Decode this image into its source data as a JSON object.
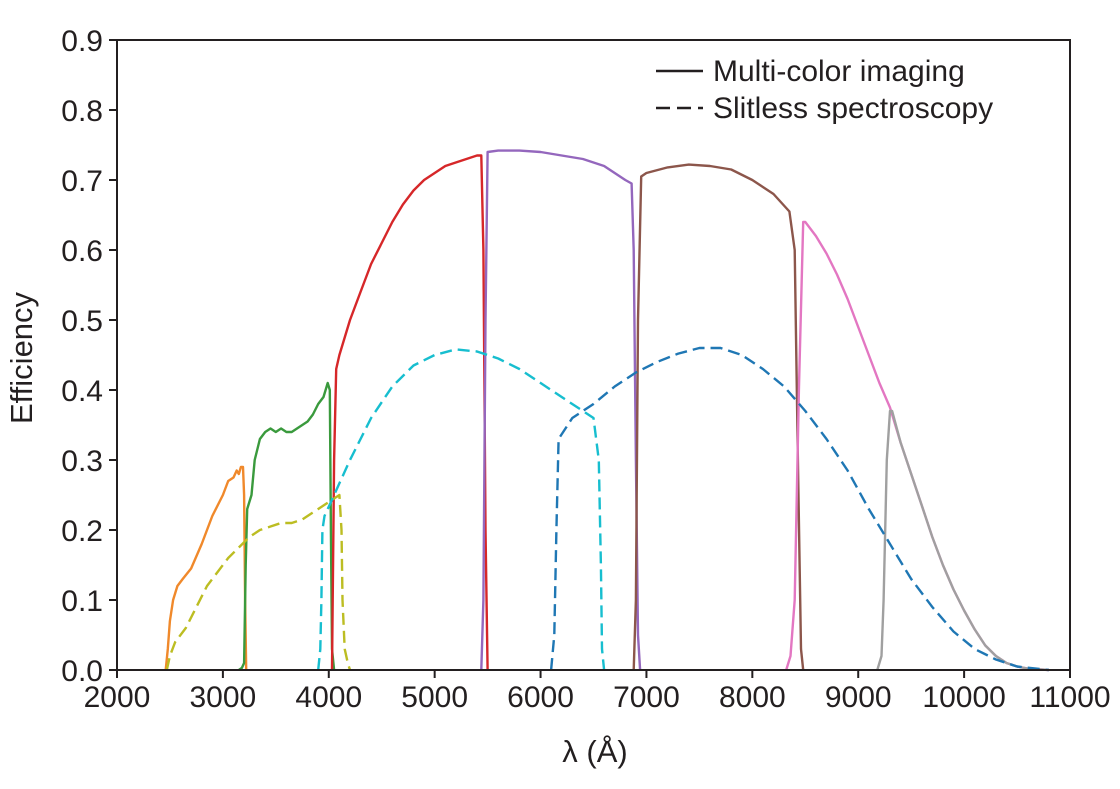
{
  "chart_data": {
    "type": "line",
    "xlabel": "λ (Å)",
    "ylabel": "Efficiency",
    "xlim": [
      2000,
      11000
    ],
    "ylim": [
      0,
      0.9
    ],
    "xticks": [
      2000,
      3000,
      4000,
      5000,
      6000,
      7000,
      8000,
      9000,
      10000,
      11000
    ],
    "xtick_labels": [
      "2000",
      "3000",
      "4000",
      "5000",
      "6000",
      "7000",
      "8000",
      "9000",
      "10000",
      "11000"
    ],
    "yticks": [
      0,
      0.1,
      0.2,
      0.3,
      0.4,
      0.5,
      0.6,
      0.7,
      0.8,
      0.9
    ],
    "ytick_labels": [
      "0.0",
      "0.1",
      "0.2",
      "0.3",
      "0.4",
      "0.5",
      "0.6",
      "0.7",
      "0.8",
      "0.9"
    ],
    "grid": false,
    "legend_position": "top-right",
    "legend": [
      {
        "label": "Multi-color imaging",
        "style": "solid"
      },
      {
        "label": "Slitless spectroscopy",
        "style": "dashed"
      }
    ],
    "series": [
      {
        "style": "solid",
        "color": "#f0892b",
        "points": [
          [
            2460,
            0
          ],
          [
            2480,
            0.03
          ],
          [
            2500,
            0.07
          ],
          [
            2530,
            0.1
          ],
          [
            2570,
            0.12
          ],
          [
            2620,
            0.13
          ],
          [
            2700,
            0.145
          ],
          [
            2800,
            0.18
          ],
          [
            2900,
            0.22
          ],
          [
            3000,
            0.25
          ],
          [
            3050,
            0.27
          ],
          [
            3100,
            0.275
          ],
          [
            3130,
            0.285
          ],
          [
            3150,
            0.28
          ],
          [
            3170,
            0.29
          ],
          [
            3190,
            0.29
          ],
          [
            3200,
            0.25
          ],
          [
            3210,
            0.1
          ],
          [
            3220,
            0
          ]
        ]
      },
      {
        "style": "solid",
        "color": "#3a9a3d",
        "points": [
          [
            3150,
            0
          ],
          [
            3180,
            0.003
          ],
          [
            3200,
            0.01
          ],
          [
            3215,
            0.15
          ],
          [
            3230,
            0.23
          ],
          [
            3270,
            0.25
          ],
          [
            3300,
            0.3
          ],
          [
            3350,
            0.33
          ],
          [
            3400,
            0.34
          ],
          [
            3450,
            0.345
          ],
          [
            3500,
            0.34
          ],
          [
            3550,
            0.345
          ],
          [
            3600,
            0.34
          ],
          [
            3650,
            0.34
          ],
          [
            3700,
            0.345
          ],
          [
            3750,
            0.35
          ],
          [
            3800,
            0.355
          ],
          [
            3850,
            0.365
          ],
          [
            3900,
            0.38
          ],
          [
            3950,
            0.39
          ],
          [
            3990,
            0.41
          ],
          [
            4010,
            0.4
          ],
          [
            4020,
            0.2
          ],
          [
            4030,
            0.03
          ],
          [
            4050,
            0
          ]
        ]
      },
      {
        "style": "solid",
        "color": "#d62729",
        "points": [
          [
            4030,
            0
          ],
          [
            4050,
            0.3
          ],
          [
            4070,
            0.43
          ],
          [
            4100,
            0.45
          ],
          [
            4200,
            0.5
          ],
          [
            4300,
            0.54
          ],
          [
            4400,
            0.58
          ],
          [
            4500,
            0.61
          ],
          [
            4600,
            0.64
          ],
          [
            4700,
            0.665
          ],
          [
            4800,
            0.685
          ],
          [
            4900,
            0.7
          ],
          [
            5000,
            0.71
          ],
          [
            5100,
            0.72
          ],
          [
            5200,
            0.725
          ],
          [
            5300,
            0.73
          ],
          [
            5400,
            0.735
          ],
          [
            5440,
            0.735
          ],
          [
            5460,
            0.6
          ],
          [
            5480,
            0.2
          ],
          [
            5500,
            0
          ]
        ]
      },
      {
        "style": "solid",
        "color": "#9467bd",
        "points": [
          [
            5440,
            0
          ],
          [
            5460,
            0.1
          ],
          [
            5480,
            0.5
          ],
          [
            5500,
            0.74
          ],
          [
            5600,
            0.742
          ],
          [
            5800,
            0.742
          ],
          [
            6000,
            0.74
          ],
          [
            6200,
            0.735
          ],
          [
            6400,
            0.73
          ],
          [
            6600,
            0.72
          ],
          [
            6800,
            0.7
          ],
          [
            6860,
            0.695
          ],
          [
            6880,
            0.6
          ],
          [
            6900,
            0.3
          ],
          [
            6920,
            0.05
          ],
          [
            6940,
            0
          ]
        ]
      },
      {
        "style": "solid",
        "color": "#8c564b",
        "points": [
          [
            6880,
            0
          ],
          [
            6900,
            0.1
          ],
          [
            6920,
            0.5
          ],
          [
            6950,
            0.705
          ],
          [
            7000,
            0.71
          ],
          [
            7200,
            0.718
          ],
          [
            7400,
            0.722
          ],
          [
            7600,
            0.72
          ],
          [
            7800,
            0.715
          ],
          [
            8000,
            0.7
          ],
          [
            8200,
            0.68
          ],
          [
            8350,
            0.655
          ],
          [
            8400,
            0.6
          ],
          [
            8430,
            0.3
          ],
          [
            8460,
            0.03
          ],
          [
            8480,
            0
          ]
        ]
      },
      {
        "style": "solid",
        "color": "#e377c2",
        "points": [
          [
            8320,
            0
          ],
          [
            8360,
            0.02
          ],
          [
            8400,
            0.1
          ],
          [
            8440,
            0.4
          ],
          [
            8480,
            0.64
          ],
          [
            8500,
            0.64
          ],
          [
            8600,
            0.62
          ],
          [
            8700,
            0.595
          ],
          [
            8800,
            0.565
          ],
          [
            8900,
            0.53
          ],
          [
            9000,
            0.49
          ],
          [
            9100,
            0.45
          ],
          [
            9200,
            0.41
          ],
          [
            9300,
            0.375
          ],
          [
            9400,
            0.325
          ],
          [
            9500,
            0.28
          ],
          [
            9600,
            0.235
          ],
          [
            9700,
            0.19
          ],
          [
            9800,
            0.15
          ],
          [
            9900,
            0.115
          ],
          [
            10000,
            0.085
          ],
          [
            10100,
            0.058
          ],
          [
            10200,
            0.035
          ],
          [
            10300,
            0.02
          ],
          [
            10400,
            0.01
          ],
          [
            10500,
            0.005
          ],
          [
            10600,
            0.002
          ],
          [
            10800,
            0
          ]
        ]
      },
      {
        "style": "solid",
        "color": "#a0a0a0",
        "points": [
          [
            9180,
            0
          ],
          [
            9220,
            0.02
          ],
          [
            9240,
            0.1
          ],
          [
            9270,
            0.3
          ],
          [
            9300,
            0.37
          ],
          [
            9320,
            0.37
          ],
          [
            9400,
            0.325
          ],
          [
            9500,
            0.28
          ],
          [
            9600,
            0.235
          ],
          [
            9700,
            0.19
          ],
          [
            9800,
            0.15
          ],
          [
            9900,
            0.115
          ],
          [
            10000,
            0.085
          ],
          [
            10100,
            0.058
          ],
          [
            10200,
            0.035
          ],
          [
            10300,
            0.02
          ],
          [
            10400,
            0.01
          ],
          [
            10500,
            0.005
          ],
          [
            10600,
            0.002
          ],
          [
            10800,
            0
          ]
        ]
      },
      {
        "style": "dashed",
        "color": "#bcbd22",
        "points": [
          [
            2470,
            0
          ],
          [
            2500,
            0.02
          ],
          [
            2550,
            0.04
          ],
          [
            2650,
            0.06
          ],
          [
            2750,
            0.09
          ],
          [
            2850,
            0.12
          ],
          [
            2950,
            0.14
          ],
          [
            3050,
            0.16
          ],
          [
            3150,
            0.175
          ],
          [
            3250,
            0.19
          ],
          [
            3350,
            0.2
          ],
          [
            3450,
            0.205
          ],
          [
            3550,
            0.21
          ],
          [
            3650,
            0.21
          ],
          [
            3750,
            0.215
          ],
          [
            3850,
            0.225
          ],
          [
            3950,
            0.235
          ],
          [
            4000,
            0.24
          ],
          [
            4050,
            0.245
          ],
          [
            4100,
            0.25
          ],
          [
            4120,
            0.2
          ],
          [
            4130,
            0.1
          ],
          [
            4150,
            0.03
          ],
          [
            4180,
            0.01
          ],
          [
            4200,
            0
          ]
        ]
      },
      {
        "style": "dashed",
        "color": "#17becf",
        "points": [
          [
            3900,
            0
          ],
          [
            3920,
            0.03
          ],
          [
            3930,
            0.1
          ],
          [
            3940,
            0.2
          ],
          [
            3960,
            0.22
          ],
          [
            4050,
            0.25
          ],
          [
            4200,
            0.3
          ],
          [
            4400,
            0.36
          ],
          [
            4600,
            0.405
          ],
          [
            4800,
            0.435
          ],
          [
            5000,
            0.45
          ],
          [
            5200,
            0.458
          ],
          [
            5400,
            0.455
          ],
          [
            5600,
            0.445
          ],
          [
            5800,
            0.43
          ],
          [
            6000,
            0.41
          ],
          [
            6200,
            0.39
          ],
          [
            6400,
            0.37
          ],
          [
            6500,
            0.36
          ],
          [
            6550,
            0.3
          ],
          [
            6570,
            0.15
          ],
          [
            6580,
            0.03
          ],
          [
            6600,
            0
          ]
        ]
      },
      {
        "style": "dashed",
        "color": "#1f77b4",
        "points": [
          [
            6100,
            0
          ],
          [
            6130,
            0.05
          ],
          [
            6150,
            0.2
          ],
          [
            6170,
            0.33
          ],
          [
            6300,
            0.36
          ],
          [
            6500,
            0.38
          ],
          [
            6700,
            0.405
          ],
          [
            6900,
            0.425
          ],
          [
            7100,
            0.44
          ],
          [
            7300,
            0.452
          ],
          [
            7500,
            0.46
          ],
          [
            7700,
            0.46
          ],
          [
            7900,
            0.45
          ],
          [
            8100,
            0.43
          ],
          [
            8300,
            0.405
          ],
          [
            8500,
            0.37
          ],
          [
            8700,
            0.33
          ],
          [
            8900,
            0.285
          ],
          [
            9100,
            0.23
          ],
          [
            9300,
            0.18
          ],
          [
            9500,
            0.13
          ],
          [
            9700,
            0.09
          ],
          [
            9900,
            0.055
          ],
          [
            10100,
            0.03
          ],
          [
            10300,
            0.015
          ],
          [
            10500,
            0.005
          ],
          [
            10800,
            0
          ]
        ]
      }
    ]
  }
}
